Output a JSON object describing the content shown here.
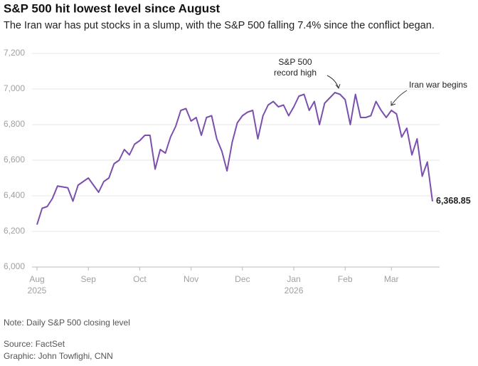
{
  "chart_data": {
    "type": "line",
    "title": "S&P 500 hit lowest level since August",
    "subtitle": "The Iran war has put stocks in a slump, with the S&P 500 falling 7.4% since the conflict began.",
    "categories": [
      "Aug 2025",
      null,
      null,
      null,
      null,
      null,
      null,
      null,
      null,
      null,
      "Sep",
      null,
      null,
      null,
      null,
      null,
      null,
      null,
      null,
      null,
      "Oct",
      null,
      null,
      null,
      null,
      null,
      null,
      null,
      null,
      null,
      "Nov",
      null,
      null,
      null,
      null,
      null,
      null,
      null,
      null,
      null,
      "Dec",
      null,
      null,
      null,
      null,
      null,
      null,
      null,
      null,
      null,
      "Jan 2026",
      null,
      null,
      null,
      null,
      null,
      null,
      null,
      null,
      null,
      "Feb",
      null,
      null,
      null,
      null,
      null,
      null,
      null,
      null,
      "Mar",
      null,
      null,
      null,
      null,
      null,
      null,
      null,
      null
    ],
    "series": [
      {
        "name": "S&P 500",
        "color": "#7b4fae",
        "values": [
          6238,
          6330,
          6340,
          6385,
          6455,
          6450,
          6445,
          6370,
          6460,
          6480,
          6500,
          6460,
          6420,
          6480,
          6500,
          6580,
          6600,
          6660,
          6630,
          6690,
          6710,
          6740,
          6740,
          6550,
          6660,
          6640,
          6730,
          6790,
          6880,
          6890,
          6820,
          6840,
          6740,
          6840,
          6850,
          6720,
          6650,
          6540,
          6700,
          6810,
          6850,
          6870,
          6880,
          6720,
          6850,
          6910,
          6930,
          6900,
          6910,
          6850,
          6900,
          6960,
          6970,
          6880,
          6930,
          6800,
          6920,
          6950,
          6980,
          6970,
          6940,
          6800,
          6970,
          6840,
          6840,
          6850,
          6930,
          6880,
          6840,
          6880,
          6860,
          6730,
          6780,
          6630,
          6720,
          6510,
          6590,
          6368.85
        ],
        "value_labels": [
          null,
          null,
          null,
          null,
          null,
          null,
          null,
          null,
          null,
          null,
          null,
          null,
          null,
          null,
          null,
          null,
          null,
          null,
          null,
          null,
          null,
          null,
          null,
          null,
          null,
          null,
          null,
          null,
          null,
          null,
          null,
          null,
          null,
          null,
          null,
          null,
          null,
          null,
          null,
          null,
          null,
          null,
          null,
          null,
          null,
          null,
          null,
          null,
          null,
          null,
          null,
          null,
          null,
          null,
          null,
          null,
          null,
          null,
          null,
          null,
          null,
          null,
          null,
          null,
          null,
          null,
          null,
          null,
          null,
          null,
          null,
          null,
          null,
          null,
          null,
          null,
          null,
          "6,368.85"
        ]
      }
    ],
    "ylim": [
      6000,
      7200
    ],
    "yticks": [
      {
        "value": 6000,
        "label": "6,000"
      },
      {
        "value": 6200,
        "label": "6,200"
      },
      {
        "value": 6400,
        "label": "6,400"
      },
      {
        "value": 6600,
        "label": "6,600"
      },
      {
        "value": 6800,
        "label": "6,800"
      },
      {
        "value": 7000,
        "label": "7,000"
      },
      {
        "value": 7200,
        "label": "7,200"
      }
    ],
    "grid": true,
    "annotations": [
      "S&P 500\nrecord high",
      "Iran war begins"
    ],
    "note": "Note: Daily S&P 500 closing level",
    "source": "Source: FactSet",
    "credit": "Graphic: John Towfighi, CNN"
  }
}
